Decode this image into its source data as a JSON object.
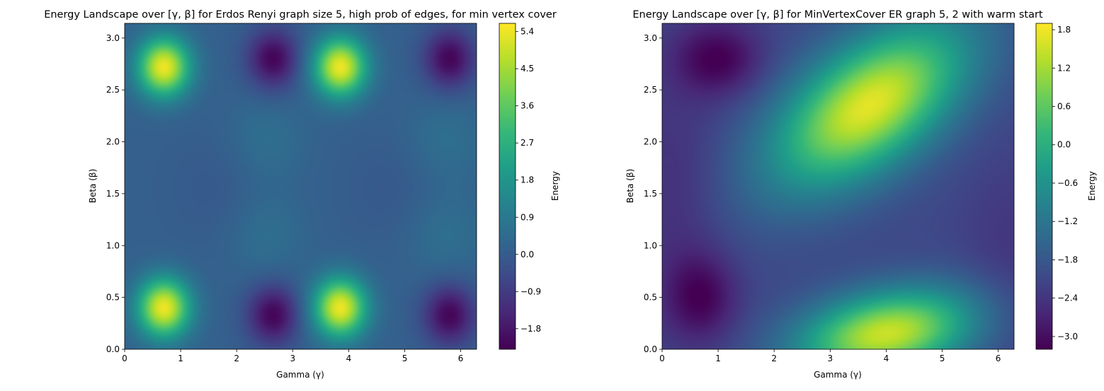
{
  "chart_data": [
    {
      "type": "heatmap",
      "title": "Energy Landscape over [γ, β] for Erdos Renyi graph size 5, high prob of edges, for min vertex cover",
      "xlabel": "Gamma (γ)",
      "ylabel": "Beta (β)",
      "colorbar_label": "Energy",
      "colormap": "viridis",
      "xlim": [
        0,
        6.283
      ],
      "ylim": [
        0,
        3.1416
      ],
      "x_ticks": [
        "0",
        "1",
        "2",
        "3",
        "4",
        "5",
        "6"
      ],
      "y_ticks": [
        "0.0",
        "0.5",
        "1.0",
        "1.5",
        "2.0",
        "2.5",
        "3.0"
      ],
      "color_range": [
        -2.3,
        5.6
      ],
      "colorbar_ticks": [
        "−1.8",
        "−0.9",
        "0.0",
        "0.9",
        "1.8",
        "2.7",
        "3.6",
        "4.5",
        "5.4"
      ],
      "background_value": 0.1,
      "blobs": [
        {
          "x": 0.7,
          "y": 2.72,
          "sx": 0.33,
          "sy": 0.2,
          "amp": 5.3
        },
        {
          "x": 3.85,
          "y": 2.72,
          "sx": 0.33,
          "sy": 0.2,
          "amp": 5.3
        },
        {
          "x": 0.7,
          "y": 0.4,
          "sx": 0.33,
          "sy": 0.2,
          "amp": 5.3
        },
        {
          "x": 3.85,
          "y": 0.4,
          "sx": 0.33,
          "sy": 0.2,
          "amp": 5.3
        },
        {
          "x": 2.65,
          "y": 2.8,
          "sx": 0.32,
          "sy": 0.2,
          "amp": -2.3
        },
        {
          "x": 5.8,
          "y": 2.8,
          "sx": 0.32,
          "sy": 0.2,
          "amp": -2.3
        },
        {
          "x": 2.65,
          "y": 0.33,
          "sx": 0.32,
          "sy": 0.2,
          "amp": -2.3
        },
        {
          "x": 5.8,
          "y": 0.33,
          "sx": 0.32,
          "sy": 0.2,
          "amp": -2.3
        },
        {
          "x": 2.5,
          "y": 2.0,
          "sx": 0.5,
          "sy": 0.3,
          "amp": 0.5
        },
        {
          "x": 5.7,
          "y": 2.0,
          "sx": 0.5,
          "sy": 0.3,
          "amp": 0.5
        },
        {
          "x": 2.5,
          "y": 1.12,
          "sx": 0.5,
          "sy": 0.3,
          "amp": 0.5
        },
        {
          "x": 5.7,
          "y": 1.12,
          "sx": 0.5,
          "sy": 0.3,
          "amp": 0.5
        },
        {
          "x": 1.8,
          "y": 1.55,
          "sx": 0.7,
          "sy": 0.4,
          "amp": -0.25
        },
        {
          "x": 4.9,
          "y": 1.55,
          "sx": 0.7,
          "sy": 0.4,
          "amp": -0.25
        }
      ]
    },
    {
      "type": "heatmap",
      "title": "Energy Landscape over [γ, β] for MinVertexCover ER graph 5, 2 with warm start",
      "xlabel": "Gamma (γ)",
      "ylabel": "Beta (β)",
      "colorbar_label": "Energy",
      "colormap": "viridis",
      "xlim": [
        0,
        6.283
      ],
      "ylim": [
        0,
        3.1416
      ],
      "x_ticks": [
        "0",
        "1",
        "2",
        "3",
        "4",
        "5",
        "6"
      ],
      "y_ticks": [
        "0.0",
        "0.5",
        "1.0",
        "1.5",
        "2.0",
        "2.5",
        "3.0"
      ],
      "color_range": [
        -3.2,
        1.9
      ],
      "colorbar_ticks": [
        "−3.0",
        "−2.4",
        "−1.8",
        "−1.2",
        "−0.6",
        "0.0",
        "0.6",
        "1.2",
        "1.8"
      ],
      "background_value": -2.1,
      "blobs": [
        {
          "x": 3.7,
          "y": 2.35,
          "sx": 1.2,
          "sy": 0.55,
          "amp": 3.8,
          "rho": 0.55
        },
        {
          "x": 4.0,
          "y": 0.15,
          "sx": 1.1,
          "sy": 0.3,
          "amp": 3.6,
          "rho": 0.3
        },
        {
          "x": 1.0,
          "y": 2.8,
          "sx": 0.55,
          "sy": 0.25,
          "amp": -1.1
        },
        {
          "x": 0.7,
          "y": 0.5,
          "sx": 0.45,
          "sy": 0.3,
          "amp": -1.0
        },
        {
          "x": 0.2,
          "y": 1.5,
          "sx": 0.6,
          "sy": 0.9,
          "amp": -0.4
        },
        {
          "x": 6.2,
          "y": 0.9,
          "sx": 0.6,
          "sy": 0.7,
          "amp": -0.3
        }
      ]
    }
  ]
}
